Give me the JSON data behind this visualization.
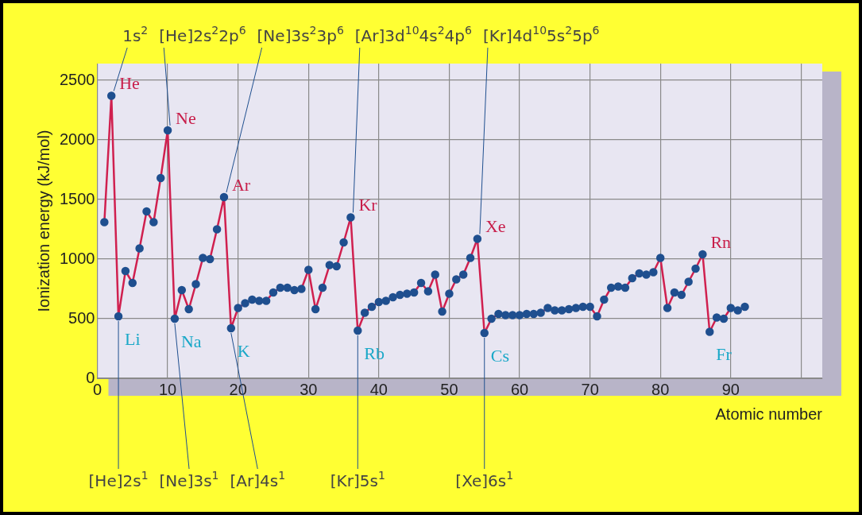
{
  "chart_data": {
    "type": "line",
    "xlabel": "Atomic number",
    "ylabel": "Ionization energy (kJ/mol)",
    "x": [
      1,
      2,
      3,
      4,
      5,
      6,
      7,
      8,
      9,
      10,
      11,
      12,
      13,
      14,
      15,
      16,
      17,
      18,
      19,
      20,
      21,
      22,
      23,
      24,
      25,
      26,
      27,
      28,
      29,
      30,
      31,
      32,
      33,
      34,
      35,
      36,
      37,
      38,
      39,
      40,
      41,
      42,
      43,
      44,
      45,
      46,
      47,
      48,
      49,
      50,
      51,
      52,
      53,
      54,
      55,
      56,
      57,
      58,
      59,
      60,
      61,
      62,
      63,
      64,
      65,
      66,
      67,
      68,
      69,
      70,
      71,
      72,
      73,
      74,
      75,
      76,
      77,
      78,
      79,
      80,
      81,
      82,
      83,
      84,
      85,
      86,
      87,
      88,
      89,
      90,
      91,
      92
    ],
    "series": [
      {
        "color": "#d0204f",
        "values": [
          1310,
          2370,
          520,
          900,
          800,
          1090,
          1400,
          1310,
          1680,
          2080,
          500,
          740,
          580,
          790,
          1010,
          1000,
          1250,
          1520,
          420,
          590,
          630,
          660,
          650,
          650,
          720,
          760,
          760,
          740,
          750,
          910,
          580,
          760,
          950,
          940,
          1140,
          1350,
          400,
          550,
          600,
          640,
          650,
          680,
          700,
          710,
          720,
          800,
          730,
          870,
          560,
          710,
          830,
          870,
          1010,
          1170,
          380,
          500,
          540,
          530,
          530,
          530,
          540,
          540,
          550,
          590,
          570,
          570,
          580,
          590,
          600,
          600,
          520,
          660,
          760,
          770,
          760,
          840,
          880,
          870,
          890,
          1010,
          590,
          720,
          700,
          810,
          920,
          1040,
          390,
          510,
          500,
          590,
          570,
          600
        ]
      }
    ],
    "xlim": [
      0,
      103
    ],
    "xticks": [
      0,
      10,
      20,
      30,
      40,
      50,
      60,
      70,
      80,
      90,
      {
        "value": 100,
        "label": null
      }
    ],
    "ylim": [
      0,
      2640
    ],
    "yticks": [
      0,
      500,
      1000,
      1500,
      2000,
      2500
    ],
    "grid": true,
    "marker": "circle",
    "line_style": "solid",
    "annotations": [
      {
        "text": "He",
        "x": 2,
        "y": 2370
      },
      {
        "text": "1s$^{2}$",
        "x": 2,
        "y": 2370
      },
      {
        "text": "Li",
        "x": 3,
        "y": 520
      },
      {
        "text": "[He]2s$^{1}$",
        "x": 3,
        "y": 520
      },
      {
        "text": "Ne",
        "x": 10,
        "y": 2080
      },
      {
        "text": "[He]2s$^{2}$2p$^{6}$",
        "x": 10,
        "y": 2080
      },
      {
        "text": "Na",
        "x": 11,
        "y": 500
      },
      {
        "text": "[Ne]3s$^{1}$",
        "x": 11,
        "y": 500
      },
      {
        "text": "Ar",
        "x": 18,
        "y": 1520
      },
      {
        "text": "[Ne]3s$^{2}$3p$^{6}$",
        "x": 18,
        "y": 1520
      },
      {
        "text": "K",
        "x": 19,
        "y": 420
      },
      {
        "text": "[Ar]4s$^{1}$",
        "x": 19,
        "y": 420
      },
      {
        "text": "Kr",
        "x": 36,
        "y": 1350
      },
      {
        "text": "[Ar]3d$^{10}$4s$^{2}$4p$^{6}$",
        "x": 36,
        "y": 1350
      },
      {
        "text": "Rb",
        "x": 37,
        "y": 400
      },
      {
        "text": "[Kr]5s$^{1}$",
        "x": 37,
        "y": 400
      },
      {
        "text": "Xe",
        "x": 54,
        "y": 1170
      },
      {
        "text": "[Kr]4d$^{10}$5s$^{2}$5p$^{6}$",
        "x": 54,
        "y": 1170
      },
      {
        "text": "Cs",
        "x": 55,
        "y": 380
      },
      {
        "text": "[Xe]6s$^{1}$",
        "x": 55,
        "y": 380
      },
      {
        "text": "Rn",
        "x": 86,
        "y": 1040
      },
      {
        "text": "Fr",
        "x": 87,
        "y": 390
      }
    ]
  }
}
